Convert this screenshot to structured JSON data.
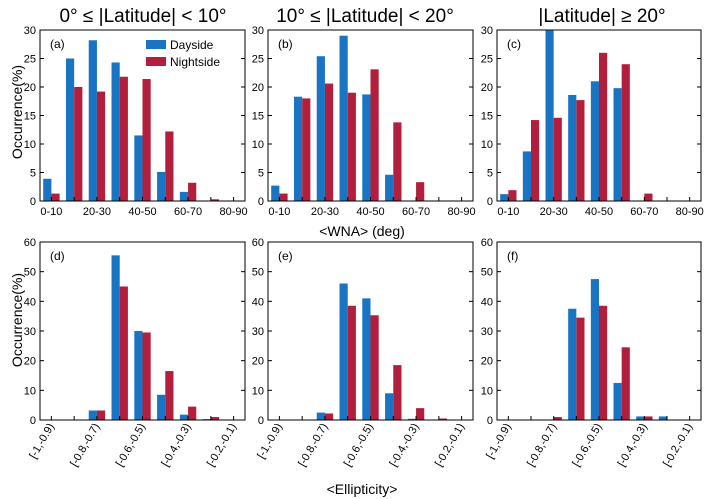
{
  "figure": {
    "column_titles": [
      "0° ≤ |Latitude| < 10°",
      "10° ≤ |Latitude| < 20°",
      "|Latitude| ≥ 20°"
    ],
    "ylabel": "Occurrence(%)",
    "top_xlabel": "<WNA> (deg)",
    "bottom_xlabel": "<Ellipticity>",
    "legend": [
      "Dayside",
      "Nightside"
    ],
    "colors": {
      "dayside": "#1a74c4",
      "nightside": "#b21f3c"
    }
  },
  "chart_data": [
    {
      "type": "bar",
      "panel": "(a)",
      "title": "0° ≤ |Latitude| < 10°",
      "categories": [
        "0-10",
        "10-20",
        "20-30",
        "30-40",
        "40-50",
        "50-60",
        "60-70",
        "70-80",
        "80-90"
      ],
      "tick_labels": [
        "0-10",
        "20-30",
        "40-50",
        "60-70",
        "80-90"
      ],
      "ylim": [
        0,
        30
      ],
      "yticks": [
        0,
        5,
        10,
        15,
        20,
        25,
        30
      ],
      "series": [
        {
          "name": "Dayside",
          "values": [
            3.9,
            25.0,
            28.2,
            24.3,
            11.5,
            5.1,
            1.6,
            0,
            0
          ]
        },
        {
          "name": "Nightside",
          "values": [
            1.3,
            20.0,
            19.2,
            21.8,
            21.4,
            12.2,
            3.2,
            0.3,
            0
          ]
        }
      ],
      "legend_position": "top-right"
    },
    {
      "type": "bar",
      "panel": "(b)",
      "title": "10° ≤ |Latitude| < 20°",
      "categories": [
        "0-10",
        "10-20",
        "20-30",
        "30-40",
        "40-50",
        "50-60",
        "60-70",
        "70-80",
        "80-90"
      ],
      "tick_labels": [
        "0-10",
        "20-30",
        "40-50",
        "60-70",
        "80-90"
      ],
      "ylim": [
        0,
        30
      ],
      "yticks": [
        0,
        5,
        10,
        15,
        20,
        25,
        30
      ],
      "series": [
        {
          "name": "Dayside",
          "values": [
            2.7,
            18.3,
            25.4,
            29.0,
            18.7,
            4.6,
            0,
            0,
            0
          ]
        },
        {
          "name": "Nightside",
          "values": [
            1.3,
            18.0,
            20.6,
            19.0,
            23.1,
            13.8,
            3.3,
            0,
            0
          ]
        }
      ]
    },
    {
      "type": "bar",
      "panel": "(c)",
      "title": "|Latitude| ≥ 20°",
      "categories": [
        "0-10",
        "10-20",
        "20-30",
        "30-40",
        "40-50",
        "50-60",
        "60-70",
        "70-80",
        "80-90"
      ],
      "tick_labels": [
        "0-10",
        "20-30",
        "40-50",
        "60-70",
        "80-90"
      ],
      "ylim": [
        0,
        30
      ],
      "yticks": [
        0,
        5,
        10,
        15,
        20,
        25,
        30
      ],
      "series": [
        {
          "name": "Dayside",
          "values": [
            1.2,
            8.7,
            29.9,
            18.6,
            21.0,
            19.8,
            0,
            0,
            0
          ]
        },
        {
          "name": "Nightside",
          "values": [
            1.9,
            14.2,
            14.6,
            17.7,
            26.0,
            24.0,
            1.3,
            0,
            0
          ]
        }
      ]
    },
    {
      "type": "bar",
      "panel": "(d)",
      "categories": [
        "[-1,-0.9)",
        "[-0.9,-0.8)",
        "[-0.8,-0.7)",
        "[-0.7,-0.6)",
        "[-0.6,-0.5)",
        "[-0.5,-0.4)",
        "[-0.4,-0.3)",
        "[-0.3,-0.2)",
        "[-0.2,-0.1)"
      ],
      "tick_labels": [
        "[-1,-0.9)",
        "[-0.8,-0.7)",
        "[-0.6,-0.5)",
        "[-0.4,-0.3)",
        "[-0.2,-0.1)"
      ],
      "ylim": [
        0,
        60
      ],
      "yticks": [
        0,
        10,
        20,
        30,
        40,
        50,
        60
      ],
      "series": [
        {
          "name": "Dayside",
          "values": [
            0,
            0,
            3.2,
            55.5,
            30.0,
            8.5,
            1.8,
            0.3,
            0
          ]
        },
        {
          "name": "Nightside",
          "values": [
            0,
            0,
            3.2,
            45.0,
            29.5,
            16.5,
            4.5,
            1.0,
            0
          ]
        }
      ]
    },
    {
      "type": "bar",
      "panel": "(e)",
      "categories": [
        "[-1,-0.9)",
        "[-0.9,-0.8)",
        "[-0.8,-0.7)",
        "[-0.7,-0.6)",
        "[-0.6,-0.5)",
        "[-0.5,-0.4)",
        "[-0.4,-0.3)",
        "[-0.3,-0.2)",
        "[-0.2,-0.1)"
      ],
      "tick_labels": [
        "[-1,-0.9)",
        "[-0.8,-0.7)",
        "[-0.6,-0.5)",
        "[-0.4,-0.3)",
        "[-0.2,-0.1)"
      ],
      "ylim": [
        0,
        60
      ],
      "yticks": [
        0,
        10,
        20,
        30,
        40,
        50,
        60
      ],
      "series": [
        {
          "name": "Dayside",
          "values": [
            0,
            0,
            2.5,
            46.0,
            41.0,
            9.0,
            0.4,
            0,
            0
          ]
        },
        {
          "name": "Nightside",
          "values": [
            0,
            0,
            2.2,
            38.5,
            35.3,
            18.5,
            4.0,
            0.5,
            0
          ]
        }
      ]
    },
    {
      "type": "bar",
      "panel": "(f)",
      "categories": [
        "[-1,-0.9)",
        "[-0.9,-0.8)",
        "[-0.8,-0.7)",
        "[-0.7,-0.6)",
        "[-0.6,-0.5)",
        "[-0.5,-0.4)",
        "[-0.4,-0.3)",
        "[-0.3,-0.2)",
        "[-0.2,-0.1)"
      ],
      "tick_labels": [
        "[-1,-0.9)",
        "[-0.8,-0.7)",
        "[-0.6,-0.5)",
        "[-0.4,-0.3)",
        "[-0.2,-0.1)"
      ],
      "ylim": [
        0,
        60
      ],
      "yticks": [
        0,
        10,
        20,
        30,
        40,
        50,
        60
      ],
      "series": [
        {
          "name": "Dayside",
          "values": [
            0,
            0,
            0,
            37.5,
            47.5,
            12.5,
            1.2,
            1.2,
            0
          ]
        },
        {
          "name": "Nightside",
          "values": [
            0,
            0,
            1.0,
            34.5,
            38.5,
            24.5,
            1.2,
            0,
            0
          ]
        }
      ]
    }
  ]
}
